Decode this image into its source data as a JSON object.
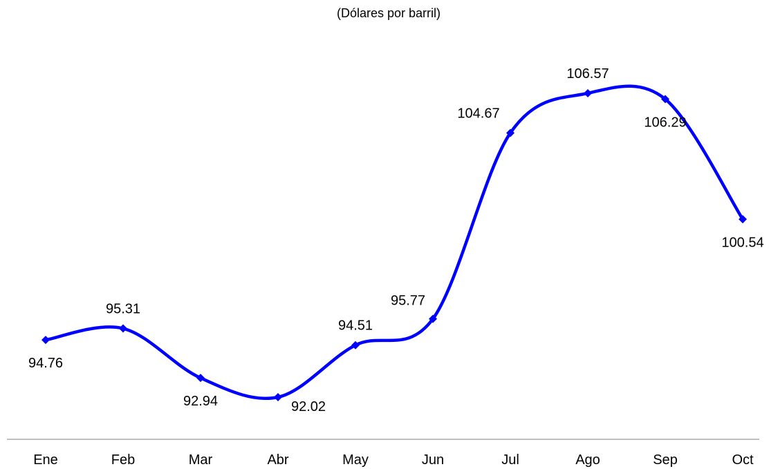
{
  "chart_data": {
    "type": "line",
    "title": "",
    "subtitle": "(Dólares por barril)",
    "xlabel": "",
    "ylabel": "",
    "categories": [
      "Ene",
      "Feb",
      "Mar",
      "Abr",
      "May",
      "Jun",
      "Jul",
      "Ago",
      "Sep",
      "Oct"
    ],
    "series": [
      {
        "values": [
          94.76,
          95.31,
          92.94,
          92.02,
          94.51,
          95.77,
          104.67,
          106.57,
          106.29,
          100.54
        ],
        "labels": [
          "94.76",
          "95.31",
          "92.94",
          "92.02",
          "94.51",
          "95.77",
          "104.67",
          "106.57",
          "106.29",
          "100.54"
        ],
        "color": "#0000ff",
        "smooth": true,
        "marker": "diamond"
      }
    ],
    "label_positions": [
      "below",
      "above",
      "below",
      "below-right",
      "above",
      "above-left",
      "left",
      "above",
      "below",
      "below"
    ],
    "grid": false,
    "legend": "none",
    "x_axis_line_color": "#808080"
  }
}
